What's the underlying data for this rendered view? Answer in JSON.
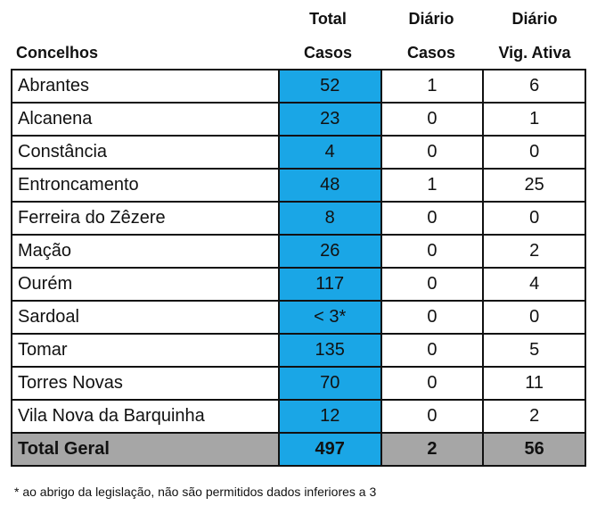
{
  "header": {
    "concelhos": "Concelhos",
    "total_line1": "Total",
    "total_line2": "Casos",
    "diario_casos_line1": "Diário",
    "diario_casos_line2": "Casos",
    "diario_vig_line1": "Diário",
    "diario_vig_line2": "Vig. Ativa"
  },
  "rows": [
    {
      "concelho": "Abrantes",
      "total": "52",
      "diario_casos": "1",
      "vig_ativa": "6"
    },
    {
      "concelho": "Alcanena",
      "total": "23",
      "diario_casos": "0",
      "vig_ativa": "1"
    },
    {
      "concelho": "Constância",
      "total": "4",
      "diario_casos": "0",
      "vig_ativa": "0"
    },
    {
      "concelho": "Entroncamento",
      "total": "48",
      "diario_casos": "1",
      "vig_ativa": "25"
    },
    {
      "concelho": "Ferreira do Zêzere",
      "total": "8",
      "diario_casos": "0",
      "vig_ativa": "0"
    },
    {
      "concelho": "Mação",
      "total": "26",
      "diario_casos": "0",
      "vig_ativa": "2"
    },
    {
      "concelho": "Ourém",
      "total": "117",
      "diario_casos": "0",
      "vig_ativa": "4"
    },
    {
      "concelho": "Sardoal",
      "total": "< 3*",
      "diario_casos": "0",
      "vig_ativa": "0"
    },
    {
      "concelho": "Tomar",
      "total": "135",
      "diario_casos": "0",
      "vig_ativa": "5"
    },
    {
      "concelho": "Torres Novas",
      "total": "70",
      "diario_casos": "0",
      "vig_ativa": "11"
    },
    {
      "concelho": "Vila Nova da Barquinha",
      "total": "12",
      "diario_casos": "0",
      "vig_ativa": "2"
    }
  ],
  "totals": {
    "label": "Total Geral",
    "total": "497",
    "diario_casos": "2",
    "vig_ativa": "56"
  },
  "footnote": "* ao abrigo da legislação, não são permitidos dados inferiores a 3",
  "colors": {
    "total_column": "#1aa6e6",
    "totals_row": "#a6a6a6"
  }
}
